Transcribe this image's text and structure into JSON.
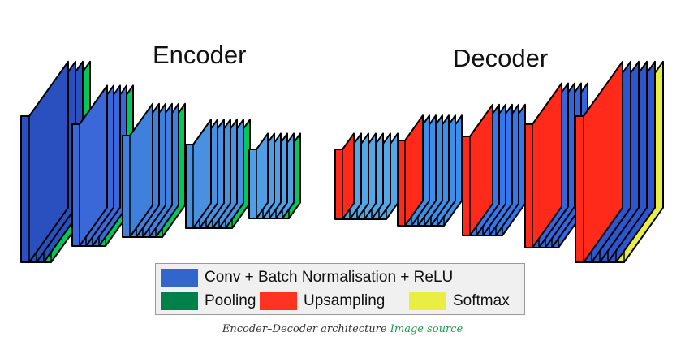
{
  "titles": {
    "encoder": "Encoder",
    "decoder": "Decoder"
  },
  "legend": {
    "conv": {
      "label": "Conv + Batch Normalisation + ReLU",
      "color": "#3366cc"
    },
    "pool": {
      "label": "Pooling",
      "color": "#00804a"
    },
    "up": {
      "label": "Upsampling",
      "color": "#ff3322"
    },
    "soft": {
      "label": "Softmax",
      "color": "#e8ee44"
    }
  },
  "colors": {
    "encoder_conv": [
      "#2a4fbf",
      "#3a68d8",
      "#3f80dd",
      "#4a90e0",
      "#4f9ee6"
    ],
    "encoder_pool": "#00c85a",
    "decoder_conv": [
      "#55a6e6",
      "#3c8ee6",
      "#3377ea",
      "#3366dd",
      "#2d55cc"
    ],
    "upsample": "#ff2a1a",
    "softmax": "#e8ee44"
  },
  "caption": {
    "text": "Encoder–Decoder architecture",
    "link": "Image source"
  }
}
